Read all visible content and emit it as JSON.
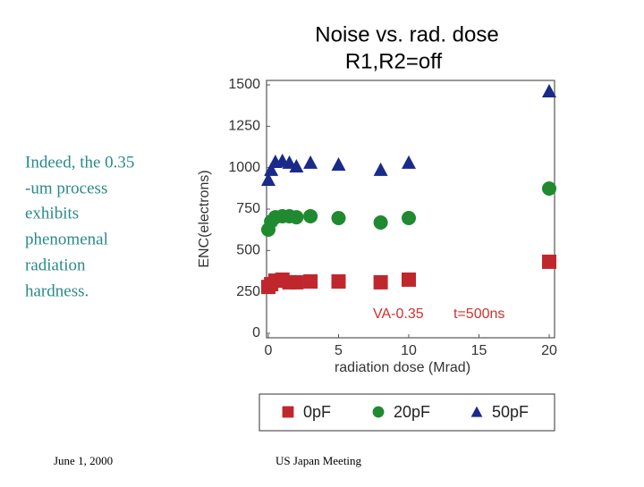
{
  "slide": {
    "text_lines": [
      "Indeed, the 0.35",
      "-um process",
      "exhibits",
      "phenomenal",
      "radiation",
      "hardness."
    ],
    "footer_date": "June 1, 2000",
    "footer_title": "US Japan Meeting"
  },
  "chart_data": {
    "type": "scatter",
    "title": "Noise vs. rad. dose",
    "subtitle": "R1,R2=off",
    "x_label": "radiation dose (Mrad)",
    "y_label": "ENC(electrons)",
    "annotations": [
      "VA-0.35",
      "t=500ns"
    ],
    "x": [
      0,
      0.2,
      0.5,
      1,
      1.5,
      2,
      3,
      5,
      8,
      10,
      20
    ],
    "series": [
      {
        "name": "0pF",
        "color": "#c0272d",
        "marker": "square",
        "values": [
          280,
          297,
          318,
          324,
          308,
          308,
          313,
          313,
          308,
          324,
          432
        ]
      },
      {
        "name": "20pF",
        "color": "#1f8a2f",
        "marker": "circle",
        "values": [
          626,
          675,
          701,
          707,
          707,
          701,
          707,
          696,
          669,
          696,
          874
        ]
      },
      {
        "name": "50pF",
        "color": "#1a2a8a",
        "marker": "triangle",
        "values": [
          928,
          988,
          1036,
          1042,
          1031,
          1009,
          1031,
          1020,
          988,
          1031,
          1462
        ]
      }
    ],
    "xlim": [
      0,
      20
    ],
    "ylim": [
      0,
      1500
    ],
    "xticks": [
      0,
      5,
      10,
      15,
      20
    ],
    "yticks": [
      0,
      250,
      500,
      750,
      1000,
      1250,
      1500
    ],
    "grid": false,
    "legend": "bottom"
  }
}
